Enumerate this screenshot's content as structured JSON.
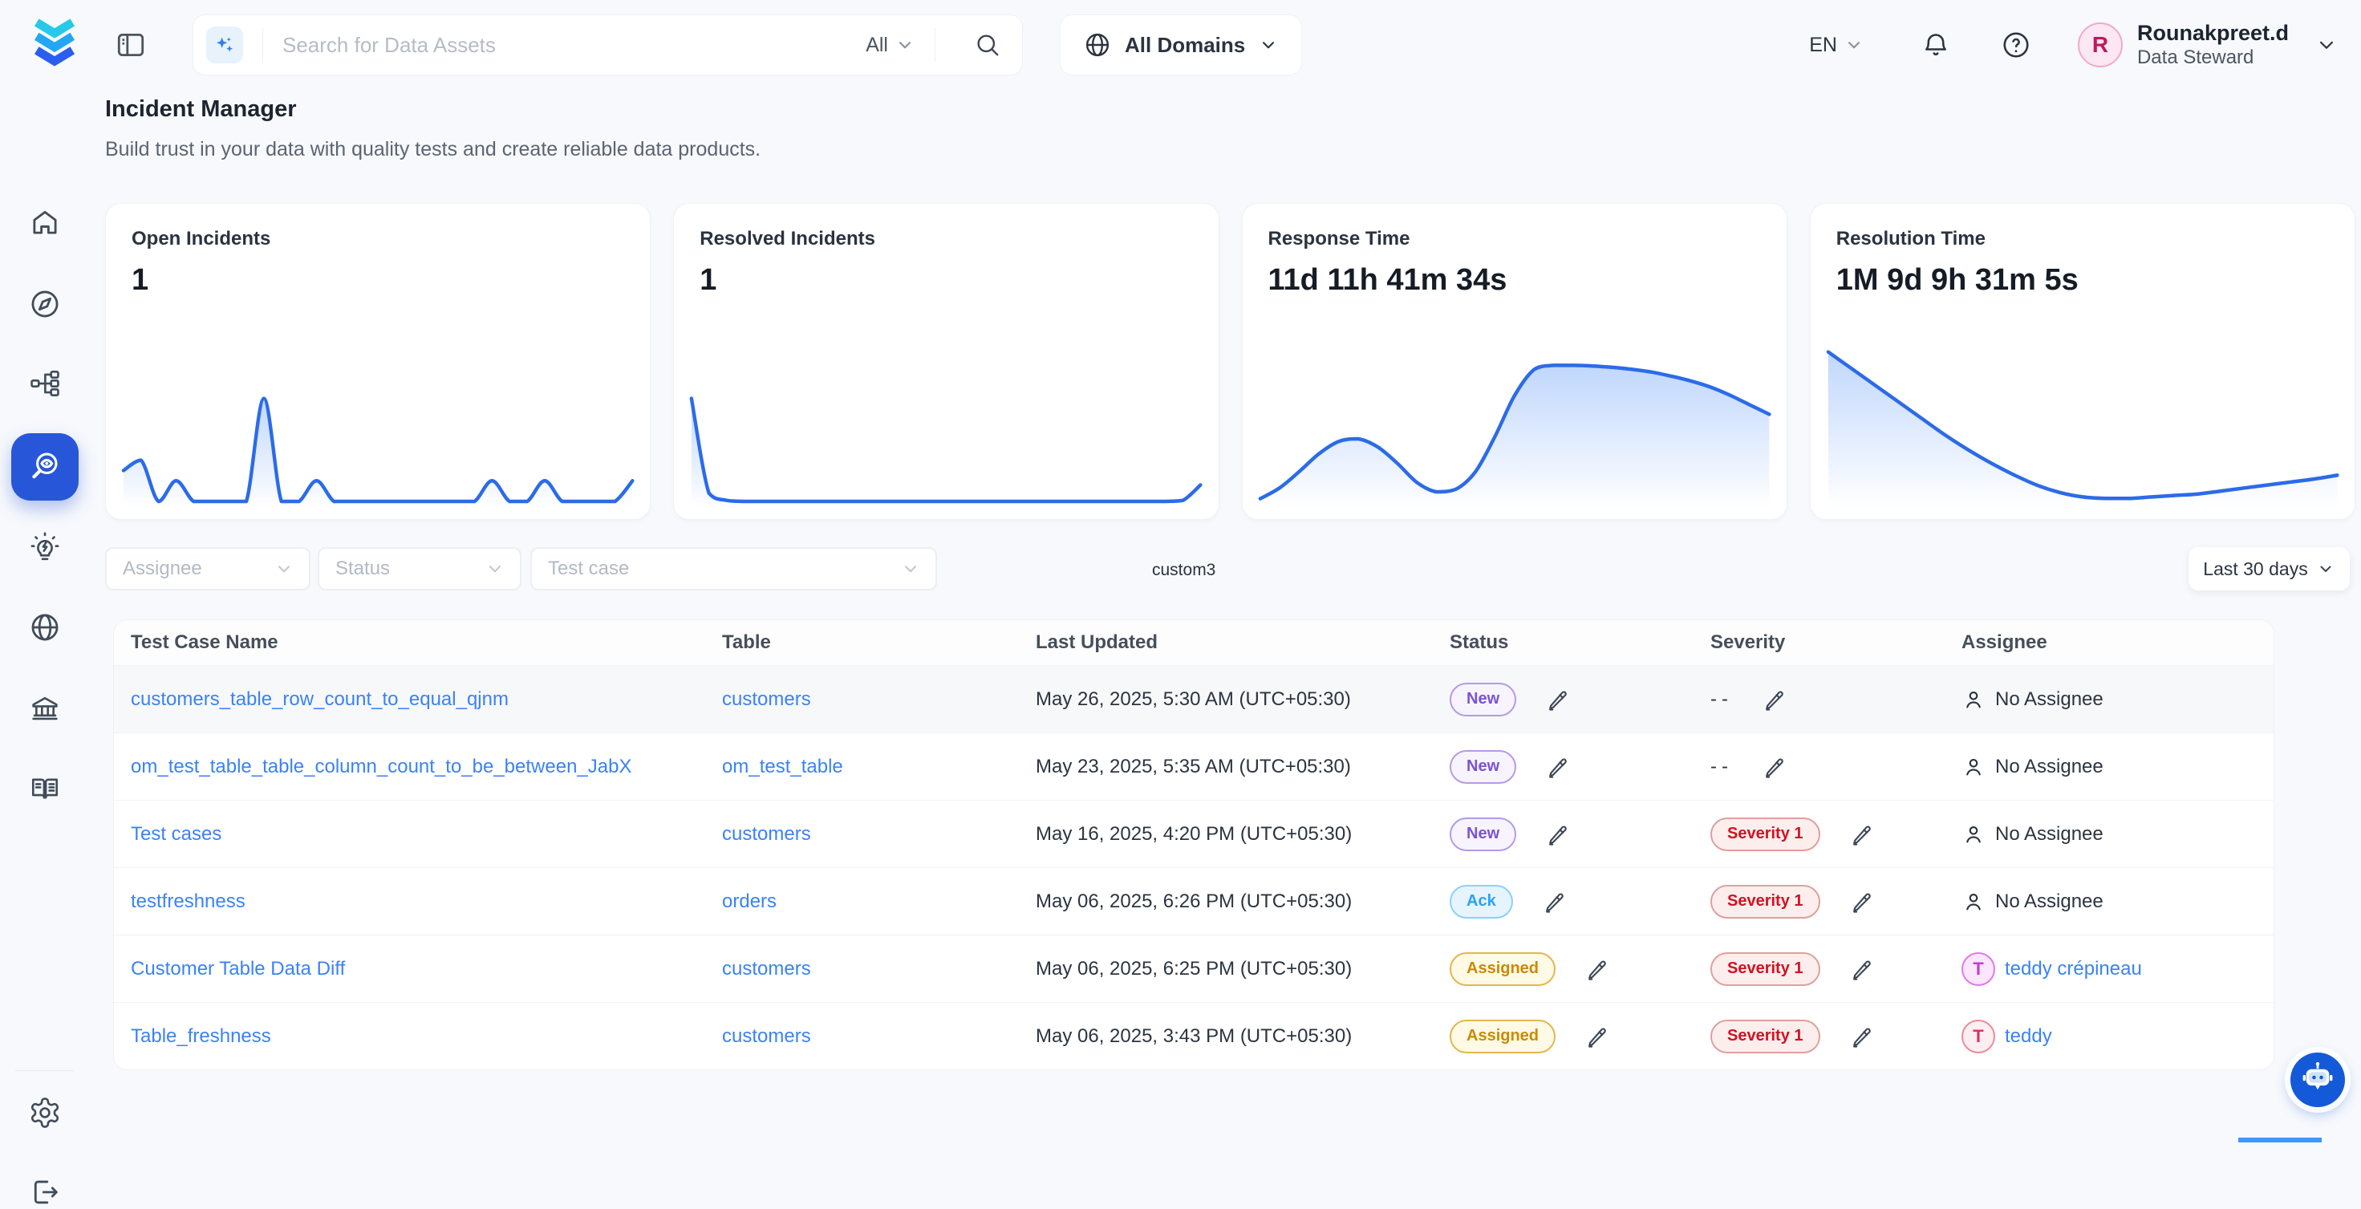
{
  "topbar": {
    "search_placeholder": "Search for Data Assets",
    "search_scope": "All",
    "domains_button": "All Domains",
    "language": "EN",
    "user": {
      "initial": "R",
      "name": "Rounakpreet.d",
      "role": "Data Steward"
    }
  },
  "sidebar": {
    "items": [
      "home",
      "explore",
      "lineage",
      "observability",
      "insights",
      "domains",
      "govern",
      "glossary"
    ],
    "active": "observability",
    "footer": [
      "settings",
      "logout"
    ]
  },
  "page": {
    "title": "Incident Manager",
    "subtitle": "Build trust in your data with quality tests and create reliable data products."
  },
  "filters": {
    "assignee_placeholder": "Assignee",
    "status_placeholder": "Status",
    "test_case_placeholder": "Test case",
    "annotation": "custom3",
    "time_range": "Last 30 days"
  },
  "chart_data": [
    {
      "id": "open-incidents",
      "type": "area",
      "title": "Open Incidents",
      "value": "1",
      "points": [
        1.5,
        2,
        0,
        1,
        0,
        0,
        0,
        0,
        5,
        0,
        0,
        1,
        0,
        0,
        0,
        0,
        0,
        0,
        0,
        0,
        0,
        1,
        0,
        0,
        1,
        0,
        0,
        0,
        0,
        1
      ],
      "ylim": [
        0,
        7.4
      ],
      "line_color": "#2c6be8",
      "x_range": "Last 30 days"
    },
    {
      "id": "resolved-incidents",
      "type": "area",
      "title": "Resolved Incidents",
      "value": "1",
      "points": [
        5,
        0.4,
        0.05,
        0,
        0,
        0,
        0,
        0,
        0,
        0,
        0,
        0,
        0,
        0,
        0,
        0,
        0,
        0,
        0,
        0,
        0,
        0,
        0,
        0,
        0,
        0,
        0,
        0,
        0.05,
        0.8
      ],
      "ylim": [
        0,
        7.4
      ],
      "line_color": "#2c6be8",
      "x_range": "Last 30 days"
    },
    {
      "id": "response-time",
      "type": "area",
      "title": "Response Time",
      "value": "11d 11h 41m 34s",
      "points": [
        2,
        10,
        22,
        35,
        44,
        46,
        40,
        28,
        14,
        7,
        9,
        22,
        48,
        78,
        97,
        100,
        100,
        99.5,
        98.5,
        97,
        95,
        92,
        88.5,
        84,
        78,
        71,
        64
      ],
      "ylim": [
        0,
        112
      ],
      "line_color": "#2c6be8",
      "x_range": "Last 30 days"
    },
    {
      "id": "resolution-time",
      "type": "area",
      "title": "Resolution Time",
      "value": "1M 9d 9h 31m 5s",
      "points": [
        100,
        89,
        78,
        67,
        56,
        45,
        35,
        26,
        18,
        11,
        6,
        3,
        2,
        2,
        3,
        4,
        5,
        7,
        9,
        11,
        13,
        15,
        17.5
      ],
      "ylim": [
        0,
        102
      ],
      "line_color": "#2c6be8",
      "x_range": "Last 30 days"
    }
  ],
  "table": {
    "columns": [
      "Test Case Name",
      "Table",
      "Last Updated",
      "Status",
      "Severity",
      "Assignee"
    ],
    "empty_severity": "--",
    "rows": [
      {
        "name": "customers_table_row_count_to_equal_qjnm",
        "table": "customers",
        "updated": "May 26, 2025, 5:30 AM (UTC+05:30)",
        "status": "New",
        "severity": null,
        "assignee": {
          "type": "none",
          "label": "No Assignee"
        }
      },
      {
        "name": "om_test_table_table_column_count_to_be_between_JabX",
        "table": "om_test_table",
        "updated": "May 23, 2025, 5:35 AM (UTC+05:30)",
        "status": "New",
        "severity": null,
        "assignee": {
          "type": "none",
          "label": "No Assignee"
        }
      },
      {
        "name": "Test cases",
        "table": "customers",
        "updated": "May 16, 2025, 4:20 PM (UTC+05:30)",
        "status": "New",
        "severity": "Severity 1",
        "assignee": {
          "type": "none",
          "label": "No Assignee"
        }
      },
      {
        "name": "testfreshness",
        "table": "orders",
        "updated": "May 06, 2025, 6:26 PM (UTC+05:30)",
        "status": "Ack",
        "severity": "Severity 1",
        "assignee": {
          "type": "none",
          "label": "No Assignee"
        }
      },
      {
        "name": "Customer Table Data Diff",
        "table": "customers",
        "updated": "May 06, 2025, 6:25 PM (UTC+05:30)",
        "status": "Assigned",
        "severity": "Severity 1",
        "assignee": {
          "type": "user",
          "initial": "T",
          "label": "teddy crépineau",
          "color": "violet"
        }
      },
      {
        "name": "Table_freshness",
        "table": "customers",
        "updated": "May 06, 2025, 3:43 PM (UTC+05:30)",
        "status": "Assigned",
        "severity": "Severity 1",
        "assignee": {
          "type": "user",
          "initial": "T",
          "label": "teddy",
          "color": "rose"
        }
      }
    ]
  },
  "colors": {
    "accent_blue": "#2c6be8",
    "link_blue": "#3b82f6",
    "active_nav": "#2757d8",
    "status_new": "#7a52d6",
    "status_ack": "#2ba1f7",
    "status_assigned": "#c98a04",
    "severity_red": "#cf1322",
    "bot_button": "#1459d8"
  }
}
